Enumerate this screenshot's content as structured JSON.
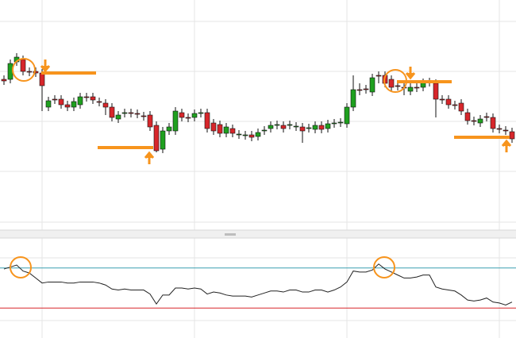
{
  "chart_data": [
    {
      "type": "candlestick",
      "ylim": [
        0,
        290
      ],
      "up_color": "#1fa01f",
      "down_color": "#d7262b",
      "open": [
        190,
        190,
        212,
        215,
        200,
        200,
        198,
        155,
        165,
        165,
        158,
        155,
        158,
        168,
        168,
        162,
        160,
        155,
        140,
        147,
        148,
        147,
        144,
        145,
        132,
        102,
        125,
        125,
        148,
        142,
        142,
        147,
        148,
        135,
        133,
        122,
        128,
        120,
        119,
        120,
        118,
        125,
        128,
        132,
        132,
        132,
        130,
        130,
        128,
        127,
        132,
        128,
        134,
        135,
        134,
        155,
        177,
        178,
        174,
        195,
        195,
        190,
        182,
        180,
        175,
        180,
        180,
        187,
        185,
        165,
        165,
        158,
        160,
        148,
        138,
        135,
        143,
        142,
        128,
        126,
        124
      ],
      "close": [
        188,
        210,
        218,
        200,
        199,
        198,
        182,
        163,
        164,
        158,
        155,
        162,
        168,
        167,
        164,
        161,
        155,
        142,
        145,
        148,
        147,
        146,
        143,
        130,
        100,
        125,
        130,
        150,
        142,
        141,
        147,
        148,
        128,
        125,
        122,
        130,
        122,
        121,
        120,
        117,
        123,
        126,
        132,
        133,
        128,
        133,
        131,
        125,
        129,
        132,
        127,
        134,
        135,
        136,
        155,
        177,
        176,
        177,
        192,
        194,
        185,
        180,
        181,
        179,
        180,
        179,
        186,
        186,
        165,
        164,
        158,
        157,
        150,
        138,
        137,
        140,
        142,
        128,
        127,
        125,
        115
      ],
      "high": [
        195,
        215,
        223,
        220,
        205,
        205,
        203,
        168,
        170,
        170,
        163,
        167,
        173,
        173,
        173,
        167,
        165,
        160,
        150,
        153,
        153,
        152,
        149,
        150,
        137,
        130,
        135,
        155,
        153,
        147,
        152,
        153,
        153,
        140,
        138,
        135,
        133,
        126,
        125,
        125,
        128,
        131,
        137,
        138,
        137,
        138,
        136,
        135,
        134,
        137,
        137,
        139,
        140,
        141,
        160,
        195,
        185,
        183,
        197,
        200,
        200,
        195,
        187,
        185,
        185,
        185,
        191,
        192,
        190,
        170,
        170,
        163,
        165,
        153,
        143,
        145,
        148,
        147,
        133,
        131,
        129
      ],
      "low": [
        183,
        185,
        207,
        195,
        194,
        193,
        150,
        150,
        159,
        153,
        150,
        150,
        153,
        162,
        159,
        156,
        145,
        137,
        135,
        142,
        142,
        141,
        138,
        125,
        98,
        97,
        120,
        120,
        137,
        136,
        137,
        142,
        123,
        120,
        117,
        117,
        117,
        115,
        114,
        112,
        113,
        120,
        123,
        127,
        123,
        127,
        125,
        110,
        123,
        122,
        122,
        123,
        129,
        130,
        129,
        150,
        170,
        172,
        169,
        185,
        180,
        175,
        176,
        170,
        170,
        174,
        175,
        181,
        142,
        159,
        153,
        152,
        145,
        133,
        132,
        130,
        137,
        123,
        122,
        120,
        110
      ]
    },
    {
      "type": "line",
      "ylim": [
        0,
        100
      ],
      "color": "#222222",
      "values": [
        69,
        71,
        73,
        67,
        65,
        60,
        55,
        56,
        56,
        56,
        55,
        55,
        56,
        56,
        56,
        55,
        53,
        49,
        48,
        49,
        48,
        48,
        48,
        44,
        34,
        43,
        43,
        50,
        50,
        49,
        50,
        49,
        44,
        46,
        45,
        43,
        42,
        42,
        42,
        41,
        43,
        45,
        47,
        47,
        46,
        48,
        48,
        46,
        46,
        48,
        48,
        46,
        48,
        51,
        56,
        67,
        66,
        66,
        68,
        74,
        69,
        66,
        63,
        60,
        60,
        61,
        63,
        63,
        51,
        49,
        48,
        47,
        43,
        38,
        37,
        38,
        40,
        36,
        35,
        33,
        36
      ],
      "levels": [
        {
          "value": 70,
          "color": "#3a9fb0"
        },
        {
          "value": 30,
          "color": "#d7262b"
        }
      ]
    }
  ]
}
